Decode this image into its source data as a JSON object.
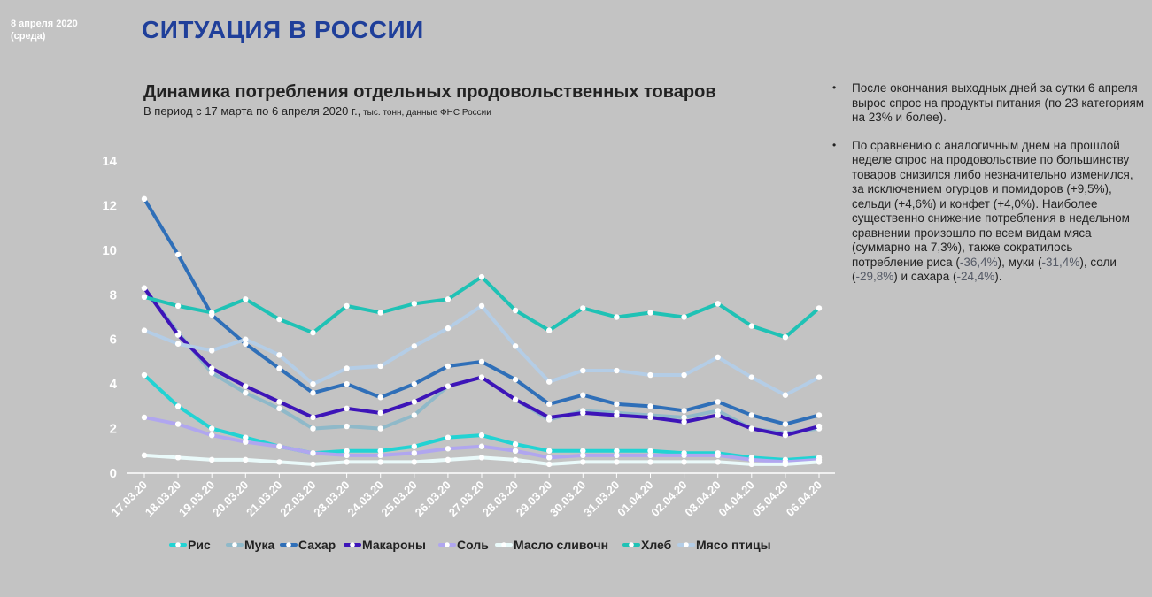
{
  "header": {
    "date_line1": "8 апреля 2020",
    "date_line2": "(среда)",
    "main_title": "СИТУАЦИЯ В РОССИИ"
  },
  "chart_header": {
    "title": "Динамика потребления отдельных продовольственных товаров",
    "subtitle": "В период с 17 марта по 6 апреля 2020 г.,",
    "subtitle_small": " тыс. тонн, данные ФНС России"
  },
  "notes": {
    "n1": "После окончания выходных дней за сутки 6 апреля вырос спрос на продукты питания (по 23 категориям на 23% и более).",
    "n2_main": "По сравнению с аналогичным днем на прошлой неделе спрос на продовольствие по большинству товаров снизился либо незначительно изменился, за исключением огурцов и помидоров (+9,5%), сельди (+4,6%) и конфет (+4,0%). Наиболее существенно снижение потребления в недельном сравнении произошло по всем видам мяса (суммарно на 7,3%), также сократилось потребление риса (",
    "n2_rice": "-36,4%",
    "n2_mid1": "), муки (",
    "n2_flour": "-31,4%",
    "n2_mid2": "), соли (",
    "n2_salt": "-29,8%",
    "n2_mid3": ") и сахара (",
    "n2_sugar": "-24,4%",
    "n2_end": ")."
  },
  "chart_data": {
    "type": "line",
    "categories": [
      "17.03.20",
      "18.03.20",
      "19.03.20",
      "20.03.20",
      "21.03.20",
      "22.03.20",
      "23.03.20",
      "24.03.20",
      "25.03.20",
      "26.03.20",
      "27.03.20",
      "28.03.20",
      "29.03.20",
      "30.03.20",
      "31.03.20",
      "01.04.20",
      "02.04.20",
      "03.04.20",
      "04.04.20",
      "05.04.20",
      "06.04.20"
    ],
    "ylim": [
      0,
      14
    ],
    "yticks": [
      0,
      2,
      4,
      6,
      8,
      10,
      12,
      14
    ],
    "grid": false,
    "legend_position": "bottom",
    "series": [
      {
        "name": "Рис",
        "color": "#22d3d3",
        "values": [
          4.4,
          3.0,
          2.0,
          1.6,
          1.2,
          0.9,
          1.0,
          1.0,
          1.2,
          1.6,
          1.7,
          1.3,
          1.0,
          1.0,
          1.0,
          1.0,
          0.9,
          0.9,
          0.7,
          0.6,
          0.7
        ]
      },
      {
        "name": "Мука",
        "color": "#8fb9c9",
        "values": [
          8.3,
          6.3,
          4.5,
          3.6,
          2.9,
          2.0,
          2.1,
          2.0,
          2.6,
          3.9,
          4.3,
          3.3,
          2.4,
          2.8,
          2.7,
          2.6,
          2.5,
          2.8,
          2.0,
          1.8,
          2.0
        ]
      },
      {
        "name": "Сахар",
        "color": "#2f6fb8",
        "values": [
          12.3,
          9.8,
          7.1,
          5.8,
          4.7,
          3.6,
          4.0,
          3.4,
          4.0,
          4.8,
          5.0,
          4.2,
          3.1,
          3.5,
          3.1,
          3.0,
          2.8,
          3.2,
          2.6,
          2.2,
          2.6
        ]
      },
      {
        "name": "Макароны",
        "color": "#3d14b8",
        "values": [
          8.3,
          6.2,
          4.7,
          3.9,
          3.2,
          2.5,
          2.9,
          2.7,
          3.2,
          3.9,
          4.3,
          3.3,
          2.5,
          2.7,
          2.6,
          2.5,
          2.3,
          2.6,
          2.0,
          1.7,
          2.1
        ]
      },
      {
        "name": "Соль",
        "color": "#b0a6ef",
        "values": [
          2.5,
          2.2,
          1.7,
          1.4,
          1.2,
          0.9,
          0.8,
          0.8,
          0.9,
          1.1,
          1.2,
          1.0,
          0.7,
          0.8,
          0.8,
          0.8,
          0.8,
          0.8,
          0.6,
          0.5,
          0.6
        ]
      },
      {
        "name": "Масло сливочн",
        "color": "#eafafa",
        "values": [
          0.8,
          0.7,
          0.6,
          0.6,
          0.5,
          0.4,
          0.5,
          0.5,
          0.5,
          0.6,
          0.7,
          0.6,
          0.4,
          0.5,
          0.5,
          0.5,
          0.5,
          0.5,
          0.4,
          0.4,
          0.5
        ]
      },
      {
        "name": "Хлеб",
        "color": "#1fc2b5",
        "values": [
          7.9,
          7.5,
          7.2,
          7.8,
          6.9,
          6.3,
          7.5,
          7.2,
          7.6,
          7.8,
          8.8,
          7.3,
          6.4,
          7.4,
          7.0,
          7.2,
          7.0,
          7.6,
          6.6,
          6.1,
          7.4
        ]
      },
      {
        "name": "Мясо птицы",
        "color": "#b4cde6",
        "values": [
          6.4,
          5.8,
          5.5,
          6.0,
          5.3,
          4.0,
          4.7,
          4.8,
          5.7,
          6.5,
          7.5,
          5.7,
          4.1,
          4.6,
          4.6,
          4.4,
          4.4,
          5.2,
          4.3,
          3.5,
          4.3
        ]
      }
    ]
  }
}
